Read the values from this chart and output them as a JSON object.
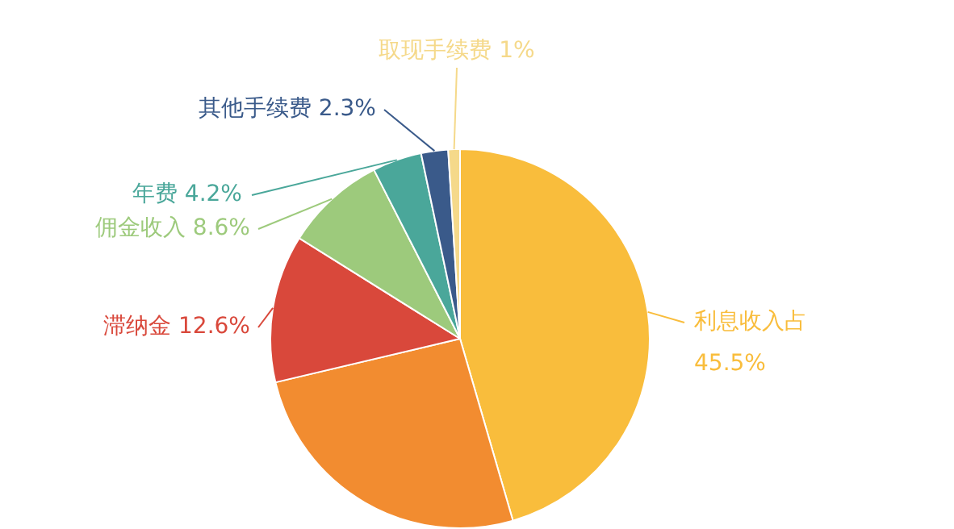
{
  "chart_data": {
    "type": "pie",
    "categories": [
      "利息收入占",
      null,
      "滞纳金",
      "佣金收入",
      "年费",
      "其他手续费",
      "取现手续费"
    ],
    "values": [
      45.5,
      25.8,
      12.6,
      8.6,
      4.2,
      2.3,
      1
    ],
    "colors": [
      "#f9bd3c",
      "#f28c30",
      "#d9483b",
      "#9dca7c",
      "#4aa79a",
      "#3a5a8a",
      "#f5d98a"
    ],
    "legend": false,
    "value_labels": [
      "45.5%",
      null,
      "12.6%",
      "8.6%",
      "4.2%",
      "2.3%",
      "1%"
    ]
  }
}
